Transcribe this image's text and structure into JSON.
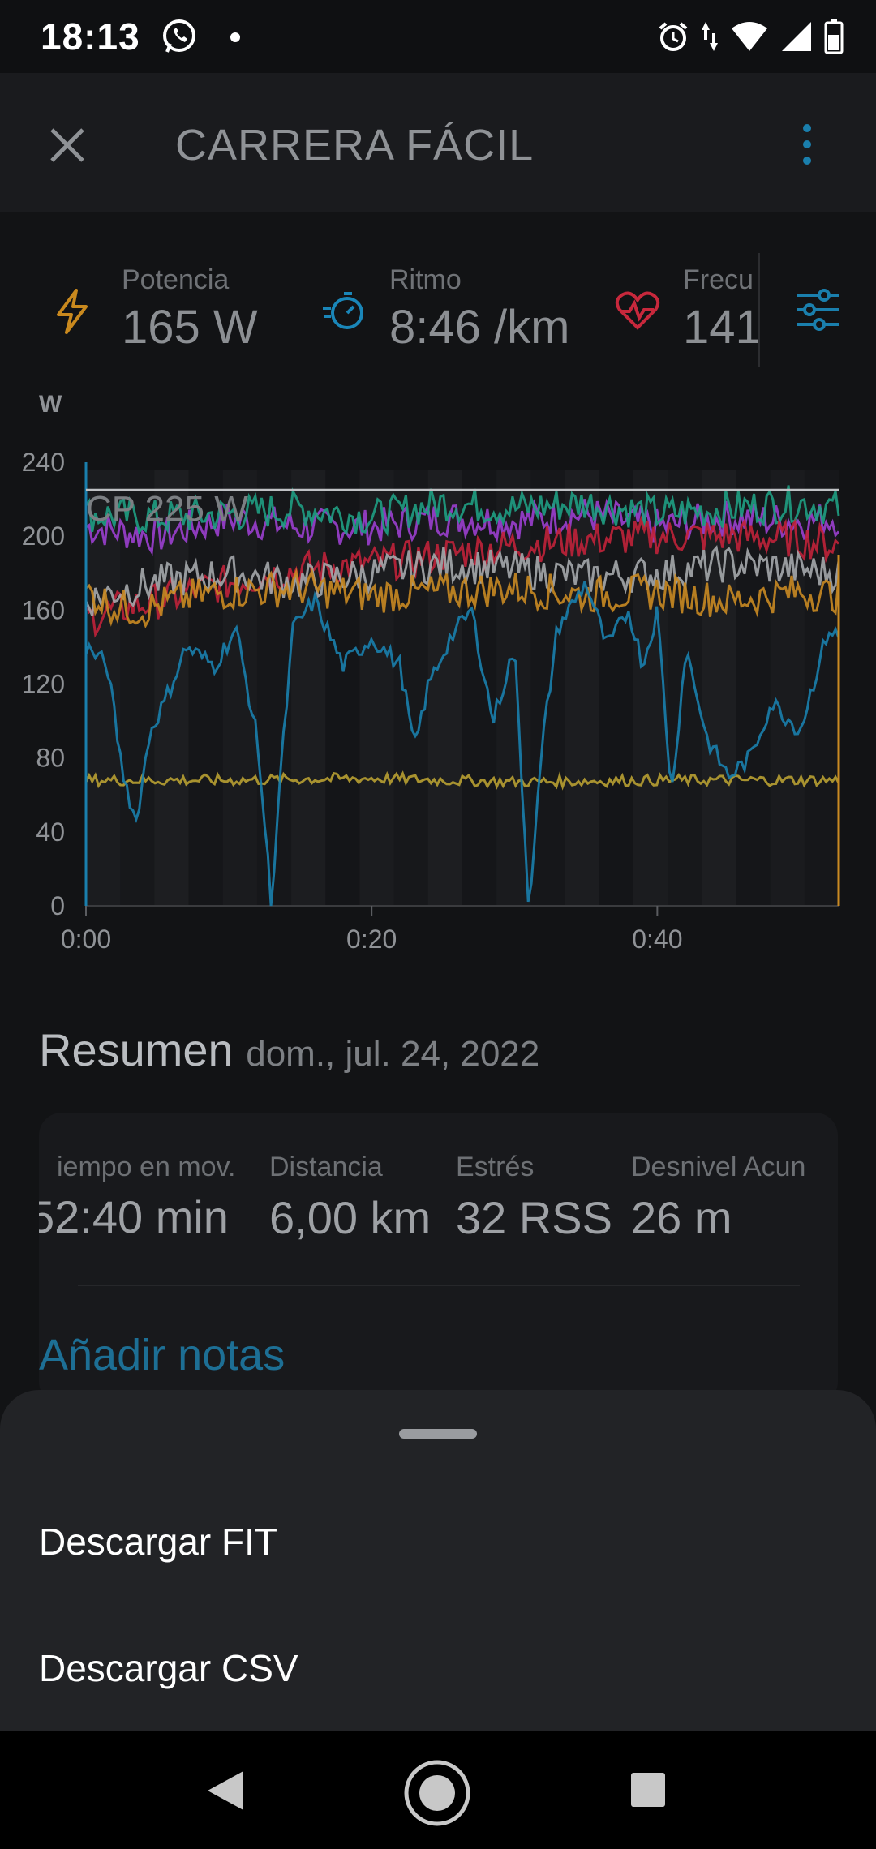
{
  "status_bar": {
    "time": "18:13"
  },
  "app_bar": {
    "title": "CARRERA FÁCIL"
  },
  "metrics": [
    {
      "label": "Potencia",
      "value": "165 W",
      "icon": "lightning-icon",
      "color": "#c9891e"
    },
    {
      "label": "Ritmo",
      "value": "8:46 /km",
      "icon": "stopwatch-icon",
      "color": "#1a86b8"
    },
    {
      "label": "Frecu",
      "value": "141",
      "icon": "heart-rate-icon",
      "color": "#c8283c"
    }
  ],
  "chart_data": {
    "type": "line",
    "ylabel": "W",
    "ylim": [
      0,
      240
    ],
    "y_ticks": [
      "240",
      "200",
      "160",
      "120",
      "80",
      "40",
      "0"
    ],
    "x_ticks": [
      "0:00",
      "0:20",
      "0:40"
    ],
    "xlim_minutes": [
      0,
      52.7
    ],
    "annotation": "CP 225 W",
    "cp_value": 225,
    "series": [
      {
        "color": "#9b3fcf",
        "minutes": [
          0,
          5,
          10,
          15,
          20,
          25,
          30,
          35,
          40,
          45,
          50,
          52.7
        ],
        "values": [
          205,
          200,
          210,
          205,
          205,
          210,
          208,
          212,
          205,
          210,
          208,
          210
        ]
      },
      {
        "color": "#1f9e83",
        "minutes": [
          0,
          5,
          10,
          15,
          20,
          25,
          30,
          35,
          40,
          45,
          50,
          52.7
        ],
        "values": [
          212,
          210,
          212,
          215,
          210,
          218,
          215,
          218,
          212,
          215,
          218,
          215
        ]
      },
      {
        "color": "#c0223a",
        "minutes": [
          0,
          2,
          5,
          10,
          15,
          20,
          25,
          30,
          35,
          40,
          45,
          50,
          52.7
        ],
        "values": [
          155,
          160,
          165,
          175,
          182,
          185,
          190,
          195,
          198,
          200,
          200,
          198,
          195
        ]
      },
      {
        "color": "#a5a8ac",
        "minutes": [
          0,
          2,
          5,
          10,
          15,
          20,
          25,
          30,
          35,
          40,
          45,
          50,
          52.7
        ],
        "values": [
          165,
          170,
          175,
          180,
          175,
          180,
          185,
          182,
          178,
          180,
          185,
          182,
          180
        ]
      },
      {
        "color": "#c98a22",
        "minutes": [
          0,
          2,
          4,
          6,
          8,
          10,
          15,
          20,
          25,
          30,
          35,
          40,
          45,
          50,
          52.7
        ],
        "values": [
          170,
          162,
          160,
          165,
          168,
          170,
          172,
          168,
          170,
          172,
          168,
          170,
          165,
          170,
          168
        ]
      },
      {
        "color": "#b8a032",
        "minutes": [
          0,
          10,
          20,
          30,
          40,
          50,
          52.7
        ],
        "values": [
          68,
          68,
          69,
          67,
          68,
          68,
          68
        ]
      },
      {
        "color": "#1a7fad",
        "minutes": [
          0,
          1.5,
          2.5,
          3.5,
          4.5,
          5.5,
          7,
          9,
          10.5,
          12,
          13,
          13.5,
          14.5,
          16,
          18,
          20,
          22,
          23,
          24,
          25.5,
          27,
          28.5,
          30,
          31,
          32,
          33,
          35,
          36.5,
          38,
          39,
          40,
          41,
          42,
          43.5,
          45,
          46.5,
          48,
          50,
          52,
          52.7
        ],
        "values": [
          140,
          130,
          75,
          45,
          95,
          110,
          140,
          130,
          150,
          90,
          0,
          60,
          150,
          165,
          130,
          145,
          130,
          85,
          120,
          145,
          160,
          100,
          140,
          0,
          90,
          150,
          175,
          140,
          160,
          130,
          160,
          60,
          140,
          90,
          70,
          80,
          110,
          95,
          150,
          145
        ]
      }
    ]
  },
  "summary": {
    "title": "Resumen",
    "date": "dom., jul. 24, 2022",
    "stats": [
      {
        "label": "iempo en mov.",
        "value": "52:40 min"
      },
      {
        "label": "Distancia",
        "value": "6,00 km"
      },
      {
        "label": "Estrés",
        "value": "32 RSS"
      },
      {
        "label": "Desnivel Acun",
        "value": "26 m"
      }
    ],
    "notes_label": "Añadir notas"
  },
  "sheet": {
    "items": [
      {
        "label": "Descargar FIT"
      },
      {
        "label": "Descargar CSV"
      }
    ]
  }
}
